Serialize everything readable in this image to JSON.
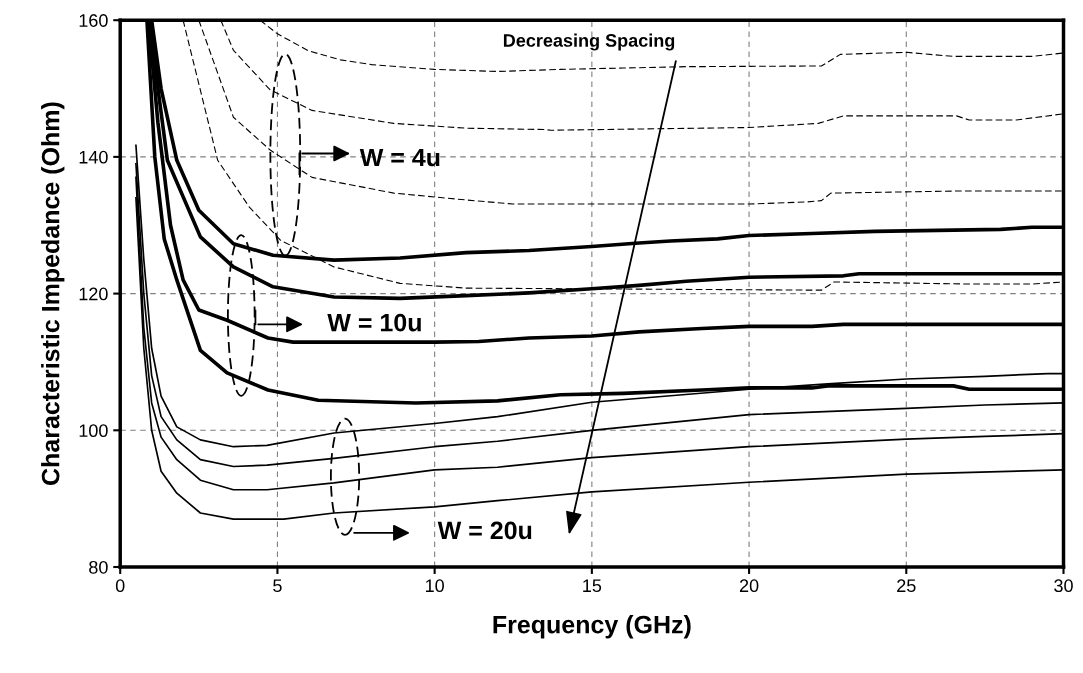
{
  "chart_data": {
    "type": "line",
    "xlabel": "Frequency (GHz)",
    "ylabel": "Characteristic Impedance (Ohm)",
    "xlim": [
      0,
      30
    ],
    "xticks": [
      0,
      5,
      10,
      15,
      20,
      25,
      30
    ],
    "ylim": [
      80,
      160
    ],
    "yticks": [
      80,
      100,
      120,
      140,
      160
    ],
    "grid": true,
    "legend": false,
    "marker": "none",
    "line_style": "solid",
    "series": [
      {
        "color": "#000000",
        "line_style": "dashed",
        "x": [
          4.45,
          5,
          6,
          7,
          8,
          10,
          12,
          14,
          16,
          18,
          22.3,
          22.9,
          25,
          26.5,
          29,
          30
        ],
        "values": [
          160,
          158,
          155.5,
          154.2,
          153.5,
          152.8,
          152.5,
          152.8,
          153,
          153.2,
          153.3,
          155,
          155.3,
          154.7,
          154.7,
          155.2
        ]
      },
      {
        "color": "#000000",
        "line_style": "dashed",
        "x": [
          3.2,
          3.6,
          4.77,
          6.1,
          8.7,
          11,
          13.5,
          13.7,
          20,
          22.2,
          23,
          26.6,
          27,
          28.5,
          30
        ],
        "values": [
          160,
          155.6,
          149.8,
          146.8,
          144.9,
          144.2,
          144,
          143.9,
          144.3,
          144.9,
          146,
          146,
          145.4,
          145.4,
          146.3
        ]
      },
      {
        "color": "#000000",
        "line_style": "dashed",
        "x": [
          2.5,
          3.6,
          4.77,
          6.1,
          8.7,
          11,
          12.5,
          20,
          21.8,
          22.3,
          22.6,
          26.5,
          30
        ],
        "values": [
          160,
          145.8,
          141,
          137,
          134.7,
          133.7,
          133.1,
          133.1,
          133.4,
          133.6,
          134.7,
          135,
          135
        ]
      },
      {
        "color": "#000000",
        "line_style": "dashed",
        "x": [
          2,
          3.1,
          4.1,
          5.1,
          6.8,
          8.9,
          11,
          22.3,
          22.7,
          27,
          29,
          30
        ],
        "values": [
          160,
          139.5,
          132.7,
          127.8,
          123.9,
          121.5,
          120.8,
          120.5,
          121.7,
          121.4,
          121.4,
          121.7
        ]
      },
      {
        "color": "#000000",
        "x": [
          1,
          1.3,
          1.8,
          2.5,
          3.6,
          4.86,
          6.8,
          8.9,
          11,
          13,
          15,
          16.5,
          17.5,
          19,
          20,
          22,
          24,
          28,
          29,
          30
        ],
        "values": [
          160,
          150,
          139.5,
          132.2,
          127.3,
          125.6,
          124.9,
          125.2,
          126,
          126.3,
          126.9,
          127.4,
          127.7,
          128,
          128.5,
          128.8,
          129.1,
          129.4,
          129.7,
          129.7
        ]
      },
      {
        "color": "#000000",
        "x": [
          0.95,
          1.2,
          1.5,
          2.55,
          3.6,
          4.86,
          6.8,
          8.9,
          11,
          13,
          15,
          16.5,
          18,
          20,
          23,
          23.5,
          30
        ],
        "values": [
          160,
          150,
          139.5,
          128.3,
          123.9,
          121,
          119.5,
          119.3,
          119.7,
          120.1,
          120.7,
          121.2,
          121.8,
          122.4,
          122.6,
          122.9,
          122.9
        ]
      },
      {
        "color": "#000000",
        "x": [
          0.9,
          1.2,
          1.6,
          2,
          2.5,
          3.4,
          4.7,
          5.5,
          10,
          11.4,
          13,
          15,
          16.5,
          18.5,
          20,
          22,
          23,
          30
        ],
        "values": [
          160,
          145,
          130,
          122,
          117.6,
          116.1,
          113.5,
          112.9,
          112.9,
          113,
          113.5,
          113.8,
          114.4,
          114.9,
          115.2,
          115.2,
          115.5,
          115.5
        ]
      },
      {
        "color": "#000000",
        "x": [
          0.85,
          1.1,
          1.4,
          1.8,
          2.55,
          3.4,
          4.7,
          6.3,
          9.4,
          12,
          14,
          16,
          18.5,
          20,
          22,
          22.5,
          26.5,
          27,
          30
        ],
        "values": [
          160,
          140,
          128,
          122,
          111.7,
          108.4,
          105.9,
          104.4,
          104,
          104.3,
          105.2,
          105.4,
          105.9,
          106.2,
          106.2,
          106.5,
          106.5,
          106,
          106
        ]
      },
      {
        "color": "#000000",
        "x": [
          0.5,
          0.75,
          1,
          1.3,
          1.8,
          2.55,
          3.6,
          4.67,
          6.8,
          10,
          12,
          15,
          20,
          22.5,
          25,
          27.5,
          29.5,
          30
        ],
        "values": [
          141.7,
          125,
          112,
          105,
          100.5,
          98.6,
          97.6,
          97.8,
          99.6,
          101,
          102,
          104.1,
          106,
          106.8,
          107.5,
          107.9,
          108.3,
          108.3
        ]
      },
      {
        "color": "#000000",
        "x": [
          0.5,
          0.75,
          1,
          1.3,
          1.8,
          2.55,
          3.6,
          4.67,
          6.8,
          10,
          12,
          15,
          20,
          25,
          27.5,
          30
        ],
        "values": [
          139,
          120,
          108,
          102,
          98.6,
          95.7,
          94.7,
          94.9,
          95.9,
          97.6,
          98.4,
          100,
          102.3,
          103.2,
          103.7,
          104
        ]
      },
      {
        "color": "#000000",
        "x": [
          0.5,
          0.75,
          1,
          1.3,
          1.8,
          2.55,
          3.6,
          4.67,
          6.8,
          10,
          12,
          15,
          20,
          25,
          27.5,
          30
        ],
        "values": [
          137,
          115,
          104,
          99,
          95.7,
          92.7,
          91.3,
          91.3,
          92.3,
          94.2,
          94.6,
          96,
          97.6,
          98.7,
          99.1,
          99.5
        ]
      },
      {
        "color": "#000000",
        "x": [
          0.5,
          0.75,
          1,
          1.3,
          1.8,
          2.55,
          3.6,
          5.2,
          6.8,
          10,
          12,
          15,
          20,
          25,
          30
        ],
        "values": [
          134,
          112,
          100,
          94,
          90.8,
          87.9,
          87,
          87,
          87.9,
          88.8,
          89.7,
          91,
          92.4,
          93.6,
          94.2
        ]
      }
    ],
    "annotations": [
      "W = 4u",
      "W = 10u",
      "W = 20u",
      "Decreasing Spacing"
    ]
  }
}
